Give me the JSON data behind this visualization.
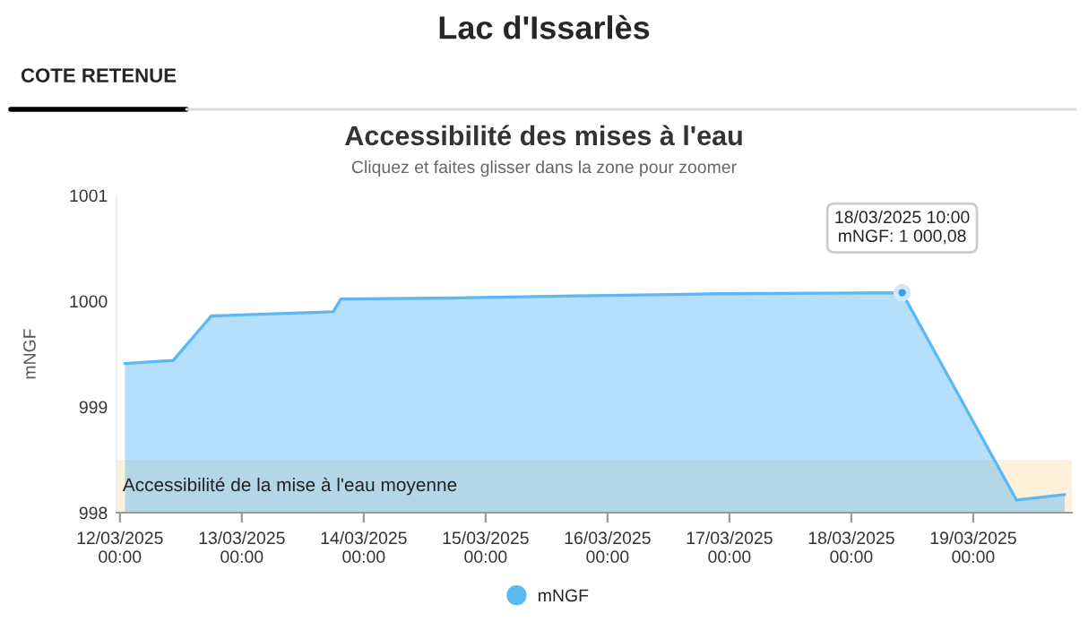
{
  "chart_data": {
    "type": "area",
    "title": "Lac d'Issarlès",
    "subtitle": "Accessibilité des mises à l'eau",
    "ylabel": "mNGF",
    "annotations": [
      "COTE RETENUE",
      "Cliquez et faites glisser dans la zone pour zoomer",
      {
        "text": "18/03/2025 10:00\nmNGF: 1 000,08",
        "x": "2025-03-18T10:00",
        "y": 1000.08
      }
    ],
    "x": [
      "2025-03-12T01:00",
      "2025-03-12T10:30",
      "2025-03-12T18:00",
      "2025-03-13T18:00",
      "2025-03-13T19:30",
      "2025-03-14T18:00",
      "2025-03-15T18:00",
      "2025-03-16T22:00",
      "2025-03-18T10:00",
      "2025-03-19T08:30",
      "2025-03-19T18:00"
    ],
    "series": [
      {
        "name": "mNGF",
        "color": "#5bb8f5",
        "values": [
          999.41,
          999.44,
          999.86,
          999.9,
          1000.02,
          1000.03,
          1000.05,
          1000.07,
          1000.08,
          998.12,
          998.17
        ]
      }
    ],
    "xlim": [
      "2025-03-11T23:20",
      "2025-03-19T19:25"
    ],
    "xticks": [
      {
        "value": "2025-03-12T00:00",
        "label": "12/03/2025\n00:00"
      },
      {
        "value": "2025-03-13T00:00",
        "label": "13/03/2025\n00:00"
      },
      {
        "value": "2025-03-14T00:00",
        "label": "14/03/2025\n00:00"
      },
      {
        "value": "2025-03-15T00:00",
        "label": "15/03/2025\n00:00"
      },
      {
        "value": "2025-03-16T00:00",
        "label": "16/03/2025\n00:00"
      },
      {
        "value": "2025-03-17T00:00",
        "label": "17/03/2025\n00:00"
      },
      {
        "value": "2025-03-18T00:00",
        "label": "18/03/2025\n00:00"
      },
      {
        "value": "2025-03-19T00:00",
        "label": "19/03/2025\n00:00"
      }
    ],
    "ylim": [
      998,
      1001
    ],
    "yticks": [
      998,
      999,
      1000,
      1001
    ],
    "bands": [
      {
        "axis": "y",
        "from": 998,
        "to": 998.5,
        "label": "Accessibilité de la mise à l'eau moyenne",
        "color": "#fdf1dc"
      }
    ],
    "legend": "bottom",
    "grid": false
  }
}
